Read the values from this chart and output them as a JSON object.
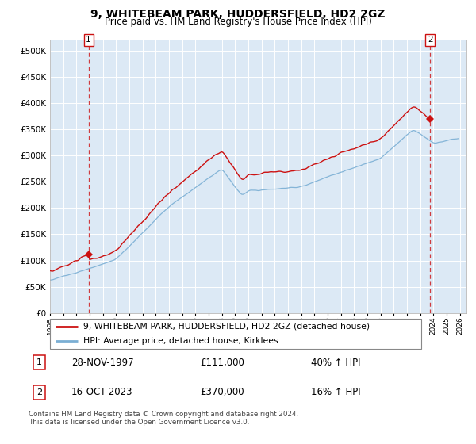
{
  "title": "9, WHITEBEAM PARK, HUDDERSFIELD, HD2 2GZ",
  "subtitle": "Price paid vs. HM Land Registry's House Price Index (HPI)",
  "sale1_date": "28-NOV-1997",
  "sale1_price": 111000,
  "sale1_label": "£111,000",
  "sale1_hpi": "40% ↑ HPI",
  "sale1_year": 1997.88,
  "sale2_date": "16-OCT-2023",
  "sale2_price": 370000,
  "sale2_label": "£370,000",
  "sale2_hpi": "16% ↑ HPI",
  "sale2_year": 2023.79,
  "legend1": "9, WHITEBEAM PARK, HUDDERSFIELD, HD2 2GZ (detached house)",
  "legend2": "HPI: Average price, detached house, Kirklees",
  "footer": "Contains HM Land Registry data © Crown copyright and database right 2024.\nThis data is licensed under the Open Government Licence v3.0.",
  "hpi_color": "#7bafd4",
  "price_color": "#cc1111",
  "marker_color": "#cc1111",
  "vline_color": "#cc1111",
  "ylim_max": 520000,
  "ylim_min": 0,
  "xmin": 1995,
  "xmax": 2026.5,
  "background_color": "#ffffff",
  "plot_bg_color": "#dce9f5",
  "grid_color": "#ffffff"
}
